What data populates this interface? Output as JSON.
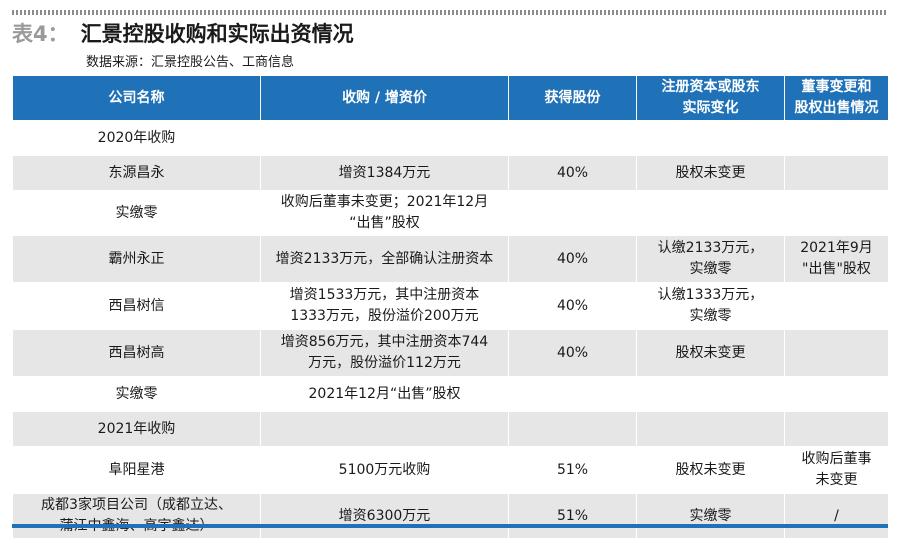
{
  "title": {
    "prefix": "表4：",
    "text": "汇景控股收购和实际出资情况"
  },
  "source": "数据来源：汇景控股公告、工商信息",
  "table": {
    "headers": [
      "公司名称",
      "收购 / 增资价",
      "获得股份",
      "注册资本或股东实际变化",
      "董事变更和股权出售情况"
    ],
    "header_lines": {
      "col3": [
        "注册资本或股东",
        "实际变化"
      ],
      "col4": [
        "董事变更和",
        "股权出售情况"
      ]
    },
    "rows": [
      {
        "company": [
          "2020年收购"
        ],
        "price": [],
        "share": "",
        "change": [],
        "board": []
      },
      {
        "company": [
          "东源昌永"
        ],
        "price": [
          "增资1384万元"
        ],
        "share": "40%",
        "change": [
          "股权未变更"
        ],
        "board": []
      },
      {
        "company": [
          "实缴零"
        ],
        "price": [
          "收购后董事未变更；2021年12月",
          "“出售”股权"
        ],
        "share": "",
        "change": [],
        "board": []
      },
      {
        "company": [
          "霸州永正"
        ],
        "price": [
          "增资2133万元，全部确认注册资本"
        ],
        "share": "40%",
        "change": [
          "认缴2133万元，",
          "实缴零"
        ],
        "board": [
          "2021年9月",
          "\"出售\"股权"
        ]
      },
      {
        "company": [
          "西昌树信"
        ],
        "price": [
          "增资1533万元，其中注册资本",
          "1333万元，股份溢价200万元"
        ],
        "share": "40%",
        "change": [
          "认缴1333万元，",
          "实缴零"
        ],
        "board": []
      },
      {
        "company": [
          "西昌树高"
        ],
        "price": [
          "增资856万元，其中注册资本744",
          "万元，股份溢价112万元"
        ],
        "share": "40%",
        "change": [
          "股权未变更"
        ],
        "board": []
      },
      {
        "company": [
          "实缴零"
        ],
        "price": [
          "2021年12月“出售”股权"
        ],
        "share": "",
        "change": [],
        "board": []
      },
      {
        "company": [
          "2021年收购"
        ],
        "price": [],
        "share": "",
        "change": [],
        "board": []
      },
      {
        "company": [
          "阜阳星港"
        ],
        "price": [
          "5100万元收购"
        ],
        "share": "51%",
        "change": [
          "股权未变更"
        ],
        "board": [
          "收购后董事",
          "未变更"
        ]
      },
      {
        "company": [
          "成都3家项目公司（成都立达、",
          "蒲江中鑫海、高宇鑫达）"
        ],
        "price": [
          "增资6300万元"
        ],
        "share": "51%",
        "change": [
          "实缴零"
        ],
        "board": [
          "/"
        ]
      }
    ]
  }
}
